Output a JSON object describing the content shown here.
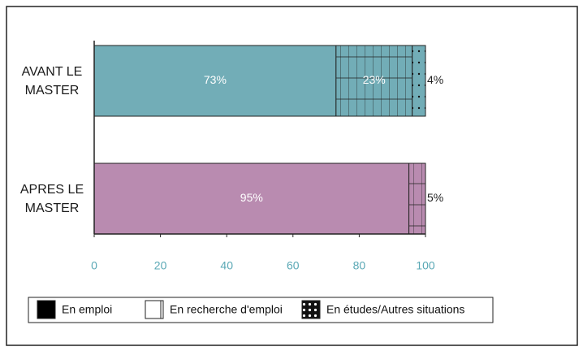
{
  "chart_data": {
    "type": "stacked-barh",
    "categories": [
      "AVANT LE MASTER",
      "APRES LE MASTER"
    ],
    "category_colors": [
      "#72adb7",
      "#b98bb0"
    ],
    "series": [
      {
        "name": "En emploi",
        "color": "#000000",
        "pattern": "solid",
        "values": [
          73,
          95
        ],
        "value_labels": [
          "73%",
          "95%"
        ]
      },
      {
        "name": "En recherche d'emploi",
        "color": "#ffffff",
        "pattern": "grid",
        "values": [
          23,
          5
        ],
        "value_labels": [
          "23%",
          "5%"
        ]
      },
      {
        "name": "En études/Autres situations",
        "color": "#000000",
        "pattern": "dots",
        "values": [
          4,
          0
        ],
        "value_labels": [
          "4%",
          null
        ]
      }
    ],
    "xlim": [
      0,
      100
    ],
    "xticks": [
      0,
      20,
      40,
      60,
      80,
      100
    ],
    "tick_color": "#5aa8b5",
    "legend": "bottom"
  }
}
